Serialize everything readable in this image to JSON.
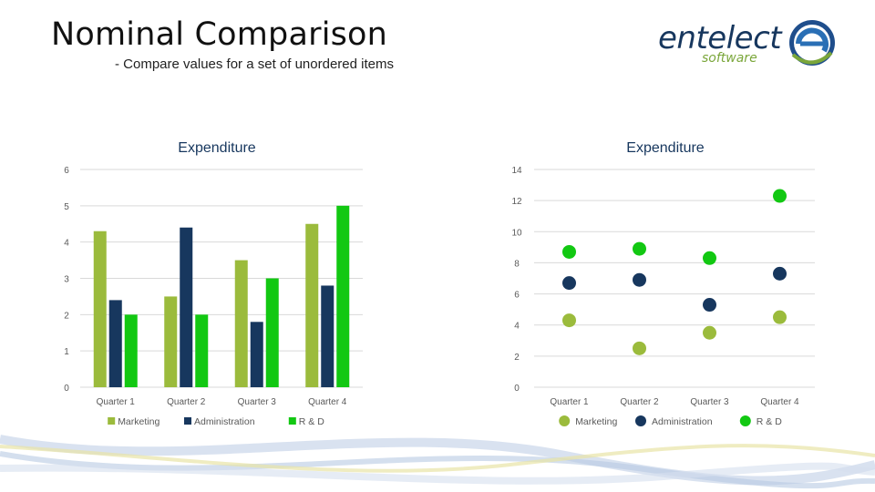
{
  "slide": {
    "title": "Nominal Comparison",
    "subtitle": "- Compare values for a set of unordered items"
  },
  "logo": {
    "word": "entelect",
    "sub": "software"
  },
  "colors": {
    "marketing": "#9bbb3c",
    "administration": "#17375e",
    "rd": "#12c812",
    "grid": "#d9d9d9",
    "axis": "#595959"
  },
  "chart_data": [
    {
      "type": "bar",
      "title": "Expenditure",
      "categories": [
        "Quarter 1",
        "Quarter 2",
        "Quarter 3",
        "Quarter 4"
      ],
      "series": [
        {
          "name": "Marketing",
          "values": [
            4.3,
            2.5,
            3.5,
            4.5
          ]
        },
        {
          "name": "Administration",
          "values": [
            2.4,
            4.4,
            1.8,
            2.8
          ]
        },
        {
          "name": "R & D",
          "values": [
            2,
            2,
            3,
            5
          ]
        }
      ],
      "yticks": [
        0,
        1,
        2,
        3,
        4,
        5,
        6
      ],
      "ylim": [
        0,
        6
      ],
      "legend": "bottom"
    },
    {
      "type": "scatter",
      "title": "Expenditure",
      "categories": [
        "Quarter 1",
        "Quarter 2",
        "Quarter 3",
        "Quarter 4"
      ],
      "series": [
        {
          "name": "Marketing",
          "values": [
            4.3,
            2.5,
            3.5,
            4.5
          ]
        },
        {
          "name": "Administration",
          "values": [
            6.7,
            6.9,
            5.3,
            7.3
          ]
        },
        {
          "name": "R & D",
          "values": [
            8.7,
            8.9,
            8.3,
            12.3
          ]
        }
      ],
      "yticks": [
        0,
        2,
        4,
        6,
        8,
        10,
        12,
        14
      ],
      "ylim": [
        0,
        14
      ],
      "legend": "bottom"
    }
  ]
}
